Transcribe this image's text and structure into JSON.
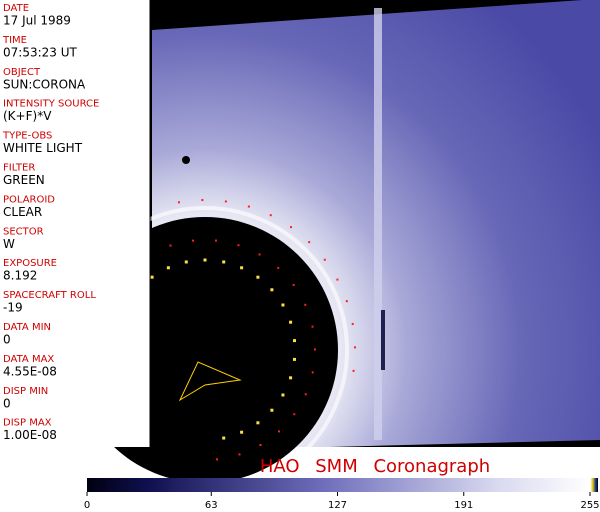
{
  "header_fields": [
    {
      "label": "DATE",
      "value": "17 Jul 1989"
    },
    {
      "label": "TIME",
      "value": "07:53:23 UT"
    },
    {
      "label": "OBJECT",
      "value": "SUN:CORONA"
    },
    {
      "label": "INTENSITY SOURCE",
      "value": "(K+F)*V"
    },
    {
      "label": "TYPE-OBS",
      "value": "WHITE LIGHT"
    },
    {
      "label": "FILTER",
      "value": "GREEN"
    },
    {
      "label": "POLAROID",
      "value": "CLEAR"
    },
    {
      "label": "SECTOR",
      "value": "W"
    },
    {
      "label": "EXPOSURE",
      "value": "8.192"
    },
    {
      "label": "SPACECRAFT ROLL",
      "value": "-19"
    },
    {
      "label": "DATA MIN",
      "value": "0"
    },
    {
      "label": "DATA MAX",
      "value": "4.55E-08"
    },
    {
      "label": "DISP MIN",
      "value": "0"
    },
    {
      "label": "DISP MAX",
      "value": "1.00E-08"
    }
  ],
  "title": "HAO SMM Coronagraph",
  "colorbar": {
    "ticks": [
      0,
      63,
      127,
      191,
      255
    ]
  }
}
